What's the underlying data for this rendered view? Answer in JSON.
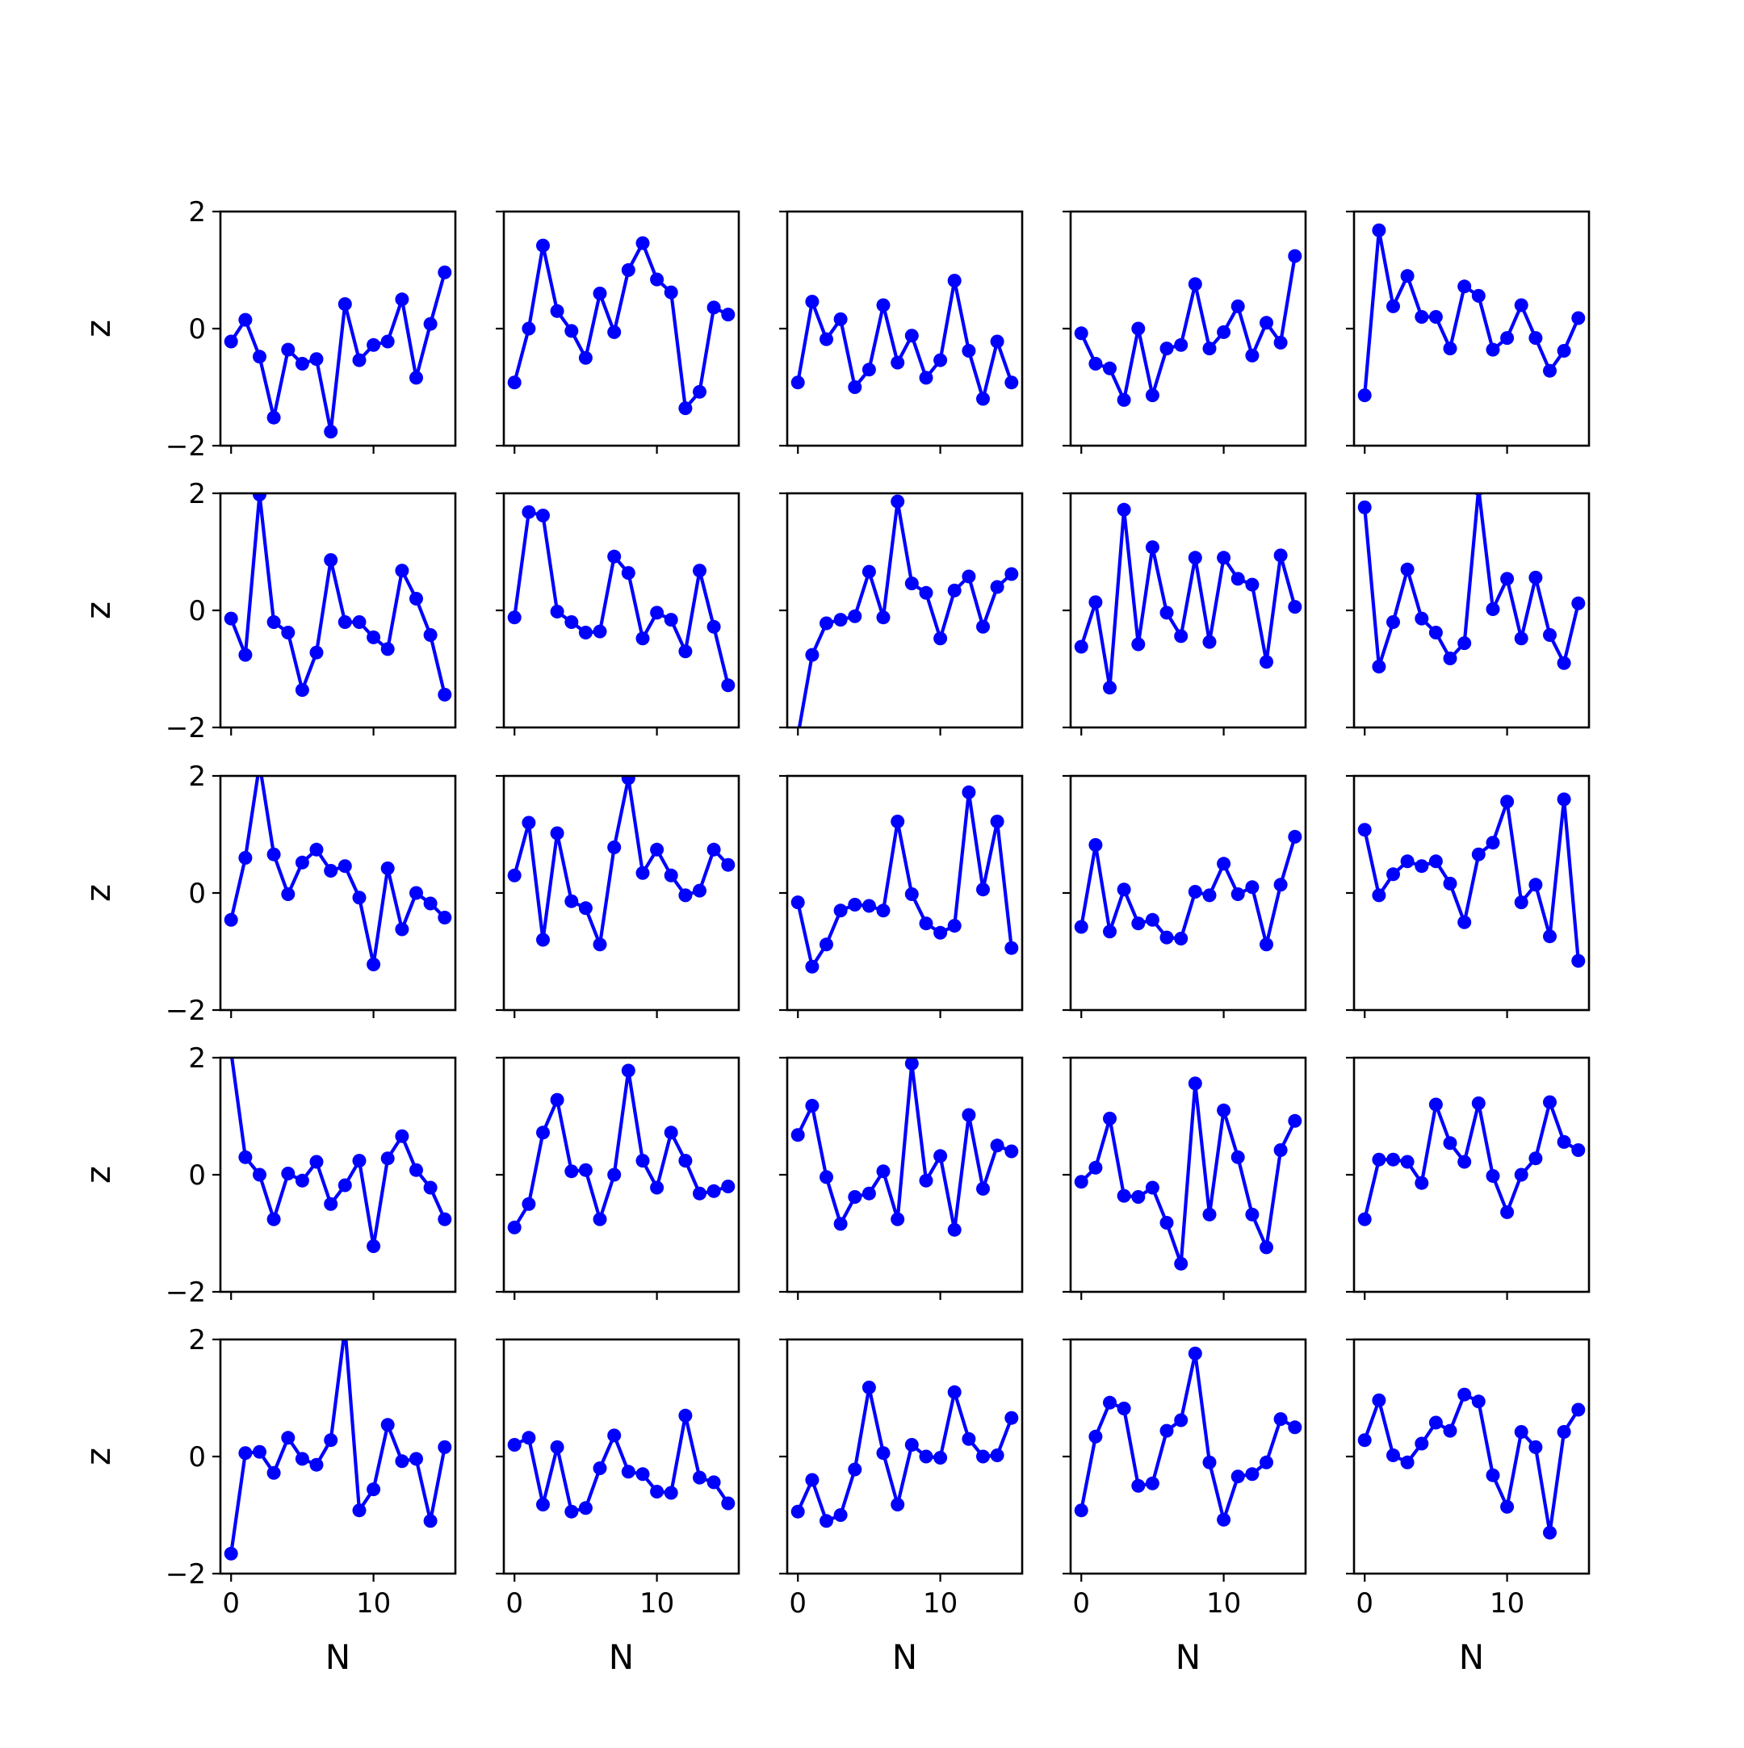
{
  "chart_data": {
    "type": "line",
    "layout": {
      "rows": 5,
      "cols": 5,
      "sharex": true,
      "sharey": true
    },
    "xlabel": "N",
    "ylabel": "z",
    "xlim": [
      -0.75,
      15.75
    ],
    "ylim": [
      -2,
      2
    ],
    "xticks": [
      0,
      10
    ],
    "xtick_labels": [
      "0",
      "10"
    ],
    "yticks": [
      -2,
      0,
      2
    ],
    "ytick_labels": [
      "−2",
      "0",
      "2"
    ],
    "line_color": "#0000ff",
    "marker": "circle",
    "grid": false,
    "x": [
      0,
      1,
      2,
      3,
      4,
      5,
      6,
      7,
      8,
      9,
      10,
      11,
      12,
      13,
      14,
      15
    ],
    "series": [
      {
        "row": 0,
        "col": 0,
        "values": [
          -0.22,
          0.15,
          -0.48,
          -1.52,
          -0.36,
          -0.6,
          -0.52,
          -1.76,
          0.42,
          -0.54,
          -0.28,
          -0.22,
          0.5,
          -0.84,
          0.08,
          0.96
        ]
      },
      {
        "row": 0,
        "col": 1,
        "values": [
          -0.92,
          0.0,
          1.42,
          0.3,
          -0.04,
          -0.5,
          0.6,
          -0.06,
          1.0,
          1.46,
          0.84,
          0.62,
          -1.36,
          -1.08,
          0.36,
          0.24
        ]
      },
      {
        "row": 0,
        "col": 2,
        "values": [
          -0.92,
          0.46,
          -0.18,
          0.16,
          -1.0,
          -0.7,
          0.4,
          -0.58,
          -0.12,
          -0.84,
          -0.54,
          0.82,
          -0.38,
          -1.2,
          -0.22,
          -0.92
        ]
      },
      {
        "row": 0,
        "col": 3,
        "values": [
          -0.08,
          -0.6,
          -0.68,
          -1.22,
          0.0,
          -1.14,
          -0.34,
          -0.28,
          0.76,
          -0.34,
          -0.06,
          0.38,
          -0.46,
          0.1,
          -0.24,
          1.24
        ]
      },
      {
        "row": 0,
        "col": 4,
        "values": [
          -1.14,
          1.68,
          0.38,
          0.9,
          0.2,
          0.2,
          -0.34,
          0.72,
          0.56,
          -0.36,
          -0.16,
          0.4,
          -0.16,
          -0.72,
          -0.38,
          0.18
        ]
      },
      {
        "row": 1,
        "col": 0,
        "values": [
          -0.14,
          -0.76,
          1.98,
          -0.2,
          -0.38,
          -1.36,
          -0.72,
          0.86,
          -0.2,
          -0.2,
          -0.46,
          -0.66,
          0.68,
          0.2,
          -0.42,
          -1.44
        ]
      },
      {
        "row": 1,
        "col": 1,
        "values": [
          -0.12,
          1.68,
          1.62,
          -0.02,
          -0.2,
          -0.38,
          -0.36,
          0.92,
          0.64,
          -0.48,
          -0.04,
          -0.16,
          -0.7,
          0.68,
          -0.28,
          -1.28
        ]
      },
      {
        "row": 1,
        "col": 2,
        "values": [
          -2.14,
          -0.76,
          -0.22,
          -0.16,
          -0.1,
          0.66,
          -0.12,
          1.86,
          0.46,
          0.3,
          -0.48,
          0.34,
          0.58,
          -0.28,
          0.4,
          0.62
        ]
      },
      {
        "row": 1,
        "col": 3,
        "values": [
          -0.62,
          0.14,
          -1.32,
          1.72,
          -0.58,
          1.08,
          -0.04,
          -0.44,
          0.9,
          -0.54,
          0.9,
          0.54,
          0.44,
          -0.88,
          0.94,
          0.06
        ]
      },
      {
        "row": 1,
        "col": 4,
        "values": [
          1.76,
          -0.96,
          -0.2,
          0.7,
          -0.14,
          -0.38,
          -0.82,
          -0.56,
          2.08,
          0.02,
          0.54,
          -0.48,
          0.56,
          -0.42,
          -0.9,
          0.12
        ]
      },
      {
        "row": 2,
        "col": 0,
        "values": [
          -0.46,
          0.6,
          2.2,
          0.66,
          -0.02,
          0.52,
          0.74,
          0.38,
          0.46,
          -0.08,
          -1.22,
          0.42,
          -0.62,
          0.0,
          -0.18,
          -0.42
        ]
      },
      {
        "row": 2,
        "col": 1,
        "values": [
          0.3,
          1.2,
          -0.8,
          1.02,
          -0.14,
          -0.26,
          -0.88,
          0.78,
          1.96,
          0.34,
          0.74,
          0.3,
          -0.04,
          0.04,
          0.74,
          0.48
        ]
      },
      {
        "row": 2,
        "col": 2,
        "values": [
          -0.16,
          -1.26,
          -0.88,
          -0.3,
          -0.2,
          -0.22,
          -0.3,
          1.22,
          -0.02,
          -0.52,
          -0.68,
          -0.56,
          1.72,
          0.06,
          1.22,
          -0.94
        ]
      },
      {
        "row": 2,
        "col": 3,
        "values": [
          -0.58,
          0.82,
          -0.66,
          0.06,
          -0.52,
          -0.46,
          -0.76,
          -0.78,
          0.02,
          -0.04,
          0.5,
          -0.02,
          0.1,
          -0.88,
          0.14,
          0.96
        ]
      },
      {
        "row": 2,
        "col": 4,
        "values": [
          1.08,
          -0.04,
          0.32,
          0.54,
          0.46,
          0.54,
          0.16,
          -0.5,
          0.66,
          0.86,
          1.56,
          -0.16,
          0.14,
          -0.74,
          1.6,
          -1.16
        ]
      },
      {
        "row": 3,
        "col": 0,
        "values": [
          2.1,
          0.3,
          0.0,
          -0.76,
          0.02,
          -0.1,
          0.22,
          -0.5,
          -0.18,
          0.24,
          -1.22,
          0.28,
          0.66,
          0.08,
          -0.22,
          -0.76
        ]
      },
      {
        "row": 3,
        "col": 1,
        "values": [
          -0.9,
          -0.5,
          0.72,
          1.28,
          0.06,
          0.08,
          -0.76,
          0.0,
          1.78,
          0.24,
          -0.22,
          0.72,
          0.24,
          -0.32,
          -0.28,
          -0.2
        ]
      },
      {
        "row": 3,
        "col": 2,
        "values": [
          0.68,
          1.18,
          -0.04,
          -0.84,
          -0.38,
          -0.32,
          0.06,
          -0.76,
          1.9,
          -0.1,
          0.32,
          -0.94,
          1.02,
          -0.24,
          0.5,
          0.4
        ]
      },
      {
        "row": 3,
        "col": 3,
        "values": [
          -0.12,
          0.12,
          0.96,
          -0.36,
          -0.38,
          -0.22,
          -0.82,
          -1.52,
          1.56,
          -0.68,
          1.1,
          0.3,
          -0.68,
          -1.24,
          0.42,
          0.92
        ]
      },
      {
        "row": 3,
        "col": 4,
        "values": [
          -0.76,
          0.26,
          0.26,
          0.22,
          -0.14,
          1.2,
          0.54,
          0.22,
          1.22,
          -0.02,
          -0.64,
          0.0,
          0.28,
          1.24,
          0.56,
          0.42
        ]
      },
      {
        "row": 4,
        "col": 0,
        "values": [
          -1.66,
          0.06,
          0.08,
          -0.28,
          0.32,
          -0.04,
          -0.14,
          0.28,
          2.2,
          -0.92,
          -0.56,
          0.54,
          -0.08,
          -0.04,
          -1.1,
          0.16
        ]
      },
      {
        "row": 4,
        "col": 1,
        "values": [
          0.2,
          0.32,
          -0.82,
          0.16,
          -0.94,
          -0.88,
          -0.2,
          0.36,
          -0.26,
          -0.3,
          -0.6,
          -0.62,
          0.7,
          -0.36,
          -0.44,
          -0.8
        ]
      },
      {
        "row": 4,
        "col": 2,
        "values": [
          -0.94,
          -0.4,
          -1.1,
          -1.0,
          -0.22,
          1.18,
          0.06,
          -0.82,
          0.2,
          0.0,
          -0.02,
          1.1,
          0.3,
          0.0,
          0.02,
          0.66
        ]
      },
      {
        "row": 4,
        "col": 3,
        "values": [
          -0.92,
          0.34,
          0.92,
          0.82,
          -0.5,
          -0.46,
          0.44,
          0.62,
          1.76,
          -0.1,
          -1.08,
          -0.34,
          -0.3,
          -0.1,
          0.64,
          0.5
        ]
      },
      {
        "row": 4,
        "col": 4,
        "values": [
          0.28,
          0.96,
          0.02,
          -0.1,
          0.22,
          0.58,
          0.44,
          1.06,
          0.94,
          -0.32,
          -0.86,
          0.42,
          0.16,
          -1.3,
          0.42,
          0.8
        ]
      }
    ]
  }
}
